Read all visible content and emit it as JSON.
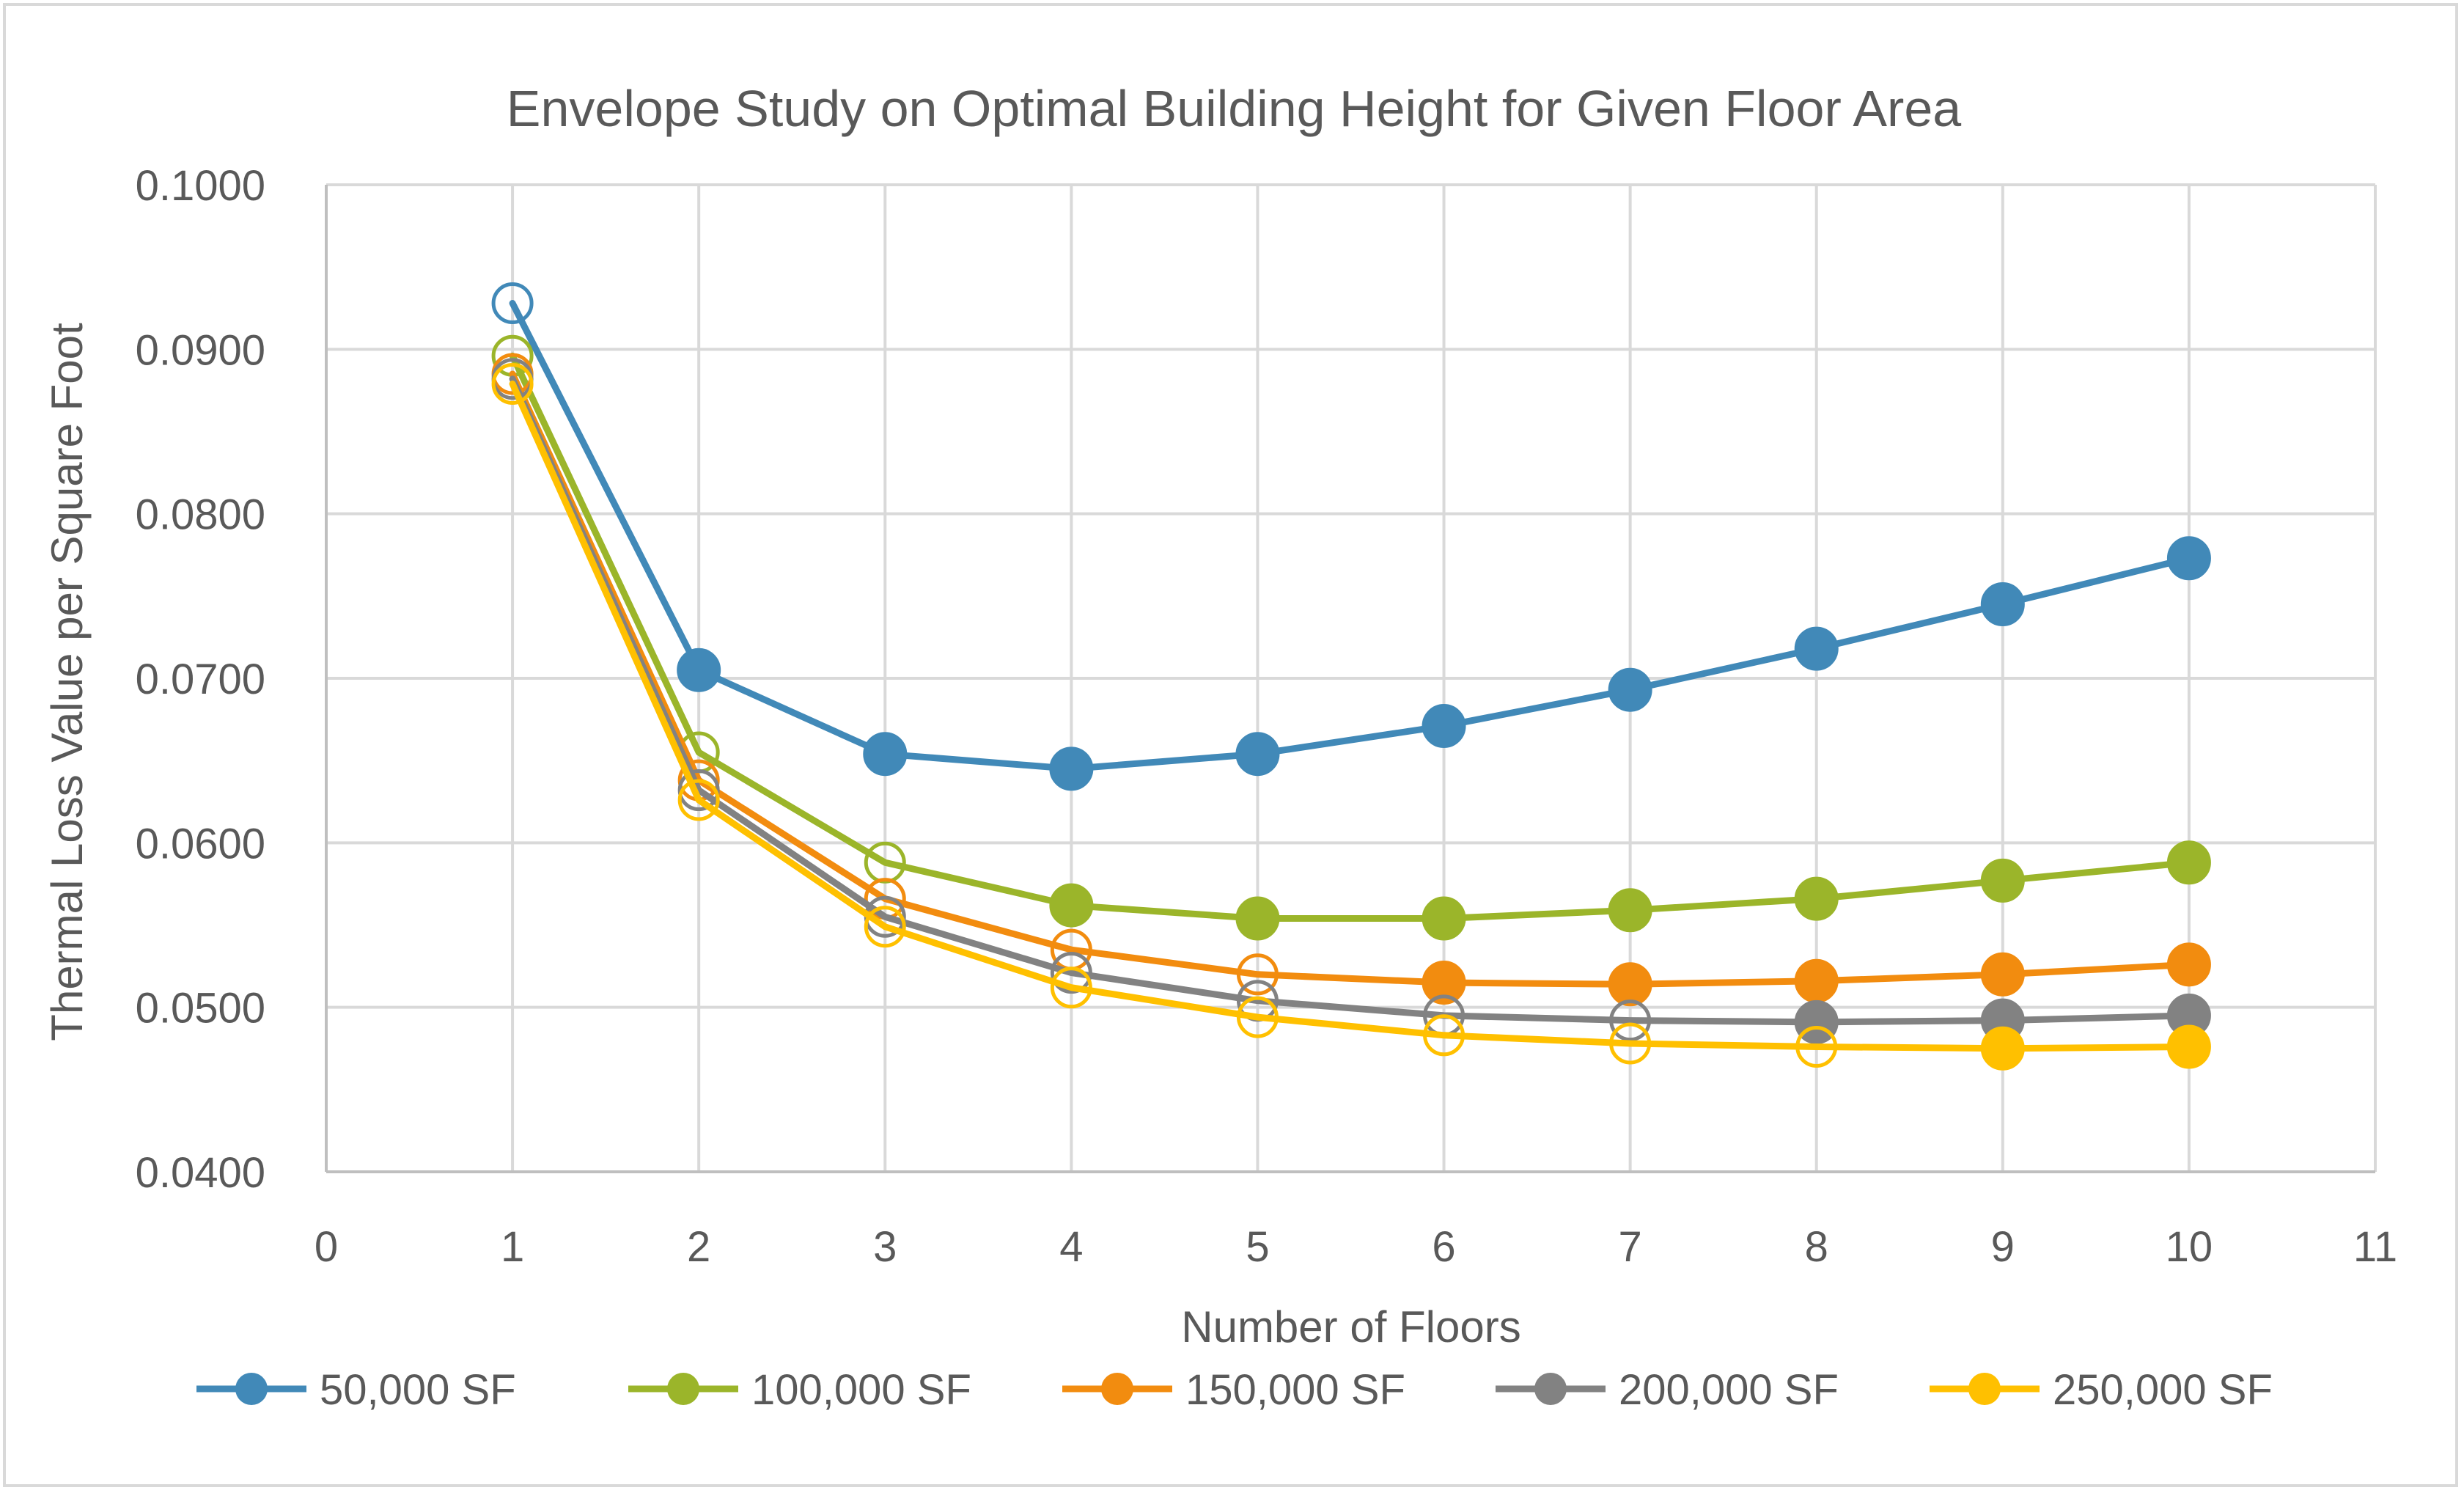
{
  "chart_data": {
    "type": "line",
    "title": "Envelope Study on Optimal Building Height for Given Floor Area",
    "xlabel": "Number of Floors",
    "ylabel": "Thermal Loss Value per Square Foot",
    "xlim": [
      0,
      11
    ],
    "ylim": [
      0.04,
      0.1
    ],
    "x_ticks": [
      "0",
      "1",
      "2",
      "3",
      "4",
      "5",
      "6",
      "7",
      "8",
      "9",
      "10",
      "11"
    ],
    "y_ticks": [
      "0.0400",
      "0.0500",
      "0.0600",
      "0.0700",
      "0.0800",
      "0.0900",
      "0.1000"
    ],
    "grid": true,
    "legend_position": "bottom",
    "x": [
      1,
      2,
      3,
      4,
      5,
      6,
      7,
      8,
      9,
      10
    ],
    "series": [
      {
        "name": "50,000 SF",
        "color": "#4189b8",
        "values": [
          0.0928,
          0.0705,
          0.0654,
          0.0645,
          0.0654,
          0.0671,
          0.0693,
          0.0718,
          0.0745,
          0.0773
        ],
        "hollow": [
          1,
          0,
          0,
          0,
          0,
          0,
          0,
          0,
          0,
          0
        ]
      },
      {
        "name": "100,000 SF",
        "color": "#9bb52a",
        "values": [
          0.0896,
          0.0655,
          0.0588,
          0.0562,
          0.0554,
          0.0554,
          0.0559,
          0.0566,
          0.0577,
          0.0588
        ],
        "hollow": [
          1,
          1,
          1,
          0,
          0,
          0,
          0,
          0,
          0,
          0
        ]
      },
      {
        "name": "150,000 SF",
        "color": "#f28c0f",
        "values": [
          0.0885,
          0.0638,
          0.0566,
          0.0535,
          0.052,
          0.0515,
          0.0514,
          0.0516,
          0.052,
          0.0526
        ],
        "hollow": [
          1,
          1,
          1,
          1,
          1,
          0,
          0,
          0,
          0,
          0
        ]
      },
      {
        "name": "200,000 SF",
        "color": "#828282",
        "values": [
          0.0882,
          0.0632,
          0.0555,
          0.0521,
          0.0504,
          0.0495,
          0.0492,
          0.0491,
          0.0492,
          0.0495
        ],
        "hollow": [
          1,
          1,
          1,
          1,
          1,
          1,
          1,
          0,
          0,
          0
        ]
      },
      {
        "name": "250,000 SF",
        "color": "#ffc000",
        "values": [
          0.0879,
          0.0626,
          0.0549,
          0.0512,
          0.0494,
          0.0483,
          0.0478,
          0.0476,
          0.0475,
          0.0476
        ],
        "hollow": [
          1,
          1,
          1,
          1,
          1,
          1,
          1,
          1,
          0,
          0
        ]
      }
    ]
  }
}
